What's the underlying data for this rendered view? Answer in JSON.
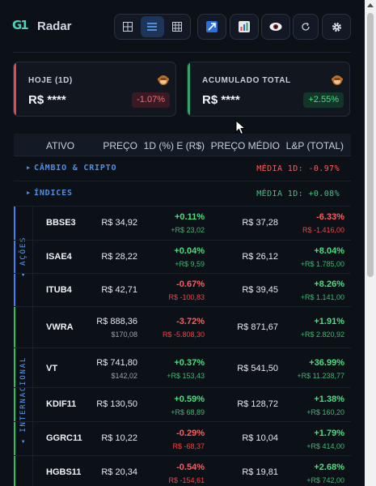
{
  "header": {
    "logo_text": "G1",
    "brand": "Radar",
    "view_modes": [
      {
        "name": "grid-view",
        "active": false
      },
      {
        "name": "list-view",
        "active": true
      },
      {
        "name": "table-view",
        "active": false
      }
    ],
    "tool_icons": [
      "trend-icon",
      "bar-chart-icon",
      "eye-icon",
      "refresh-icon",
      "gear-icon"
    ]
  },
  "cards": [
    {
      "label": "HOJE (1D)",
      "value": "R$ ****",
      "change": "-1.07%",
      "sign": "neg",
      "accent": "#e5484d"
    },
    {
      "label": "ACUMULADO TOTAL",
      "value": "R$ ****",
      "change": "+2.55%",
      "sign": "pos",
      "accent": "#30a46c"
    }
  ],
  "table": {
    "columns": [
      "ATIVO",
      "PREÇO",
      "1D (%) E (R$)",
      "PREÇO MÉDIO",
      "L&P (TOTAL)"
    ],
    "groups": [
      {
        "name": "CÂMBIO & CRIPTO",
        "media": "MÉDIA 1D: -0.97%",
        "sign": "neg"
      },
      {
        "name": "ÍNDICES",
        "media": "MÉDIA 1D: +0.08%",
        "sign": "pos"
      }
    ],
    "side_groups": [
      {
        "label": "AÇÕES",
        "color": "#3b82f6"
      },
      {
        "label": "INTERNACIONAL",
        "color": "#22c55e"
      }
    ],
    "rows": [
      {
        "ticker": "BBSE3",
        "price": "R$ 34,92",
        "price_sub": "",
        "d1": "+0.11%",
        "d1_sub": "+R$ 23,02",
        "d1_sign": "pos",
        "avg": "R$ 37,28",
        "lp": "-6.33%",
        "lp_sub": "R$ -1.416,00",
        "lp_sign": "neg"
      },
      {
        "ticker": "ISAE4",
        "price": "R$ 28,22",
        "price_sub": "",
        "d1": "+0.04%",
        "d1_sub": "+R$ 9,59",
        "d1_sign": "pos",
        "avg": "R$ 26,12",
        "lp": "+8.04%",
        "lp_sub": "+R$ 1.785,00",
        "lp_sign": "pos"
      },
      {
        "ticker": "ITUB4",
        "price": "R$ 42,71",
        "price_sub": "",
        "d1": "-0.67%",
        "d1_sub": "R$ -100,83",
        "d1_sign": "neg",
        "avg": "R$ 39,45",
        "lp": "+8.26%",
        "lp_sub": "+R$ 1.141,00",
        "lp_sign": "pos"
      },
      {
        "ticker": "VWRA",
        "price": "R$ 888,36",
        "price_sub": "$170,08",
        "d1": "-3.72%",
        "d1_sub": "R$ -5.808,30",
        "d1_sign": "neg",
        "avg": "R$ 871,67",
        "lp": "+1.91%",
        "lp_sub": "+R$ 2.820,92",
        "lp_sign": "pos"
      },
      {
        "ticker": "VT",
        "price": "R$ 741,80",
        "price_sub": "$142,02",
        "d1": "+0.37%",
        "d1_sub": "+R$ 153,43",
        "d1_sign": "pos",
        "avg": "R$ 541,50",
        "lp": "+36.99%",
        "lp_sub": "+R$ 11.238,77",
        "lp_sign": "pos"
      },
      {
        "ticker": "KDIF11",
        "price": "R$ 130,50",
        "price_sub": "",
        "d1": "+0.59%",
        "d1_sub": "+R$ 68,89",
        "d1_sign": "pos",
        "avg": "R$ 128,72",
        "lp": "+1.38%",
        "lp_sub": "+R$ 160,20",
        "lp_sign": "pos"
      },
      {
        "ticker": "GGRC11",
        "price": "R$ 10,22",
        "price_sub": "",
        "d1": "-0.29%",
        "d1_sub": "R$ -68,37",
        "d1_sign": "neg",
        "avg": "R$ 10,04",
        "lp": "+1.79%",
        "lp_sub": "+R$ 414,00",
        "lp_sign": "pos"
      },
      {
        "ticker": "HGBS11",
        "price": "R$ 20,34",
        "price_sub": "",
        "d1": "-0.54%",
        "d1_sub": "R$ -154,61",
        "d1_sign": "neg",
        "avg": "R$ 19,81",
        "lp": "+2.68%",
        "lp_sub": "+R$ 742,00",
        "lp_sign": "pos"
      }
    ]
  }
}
